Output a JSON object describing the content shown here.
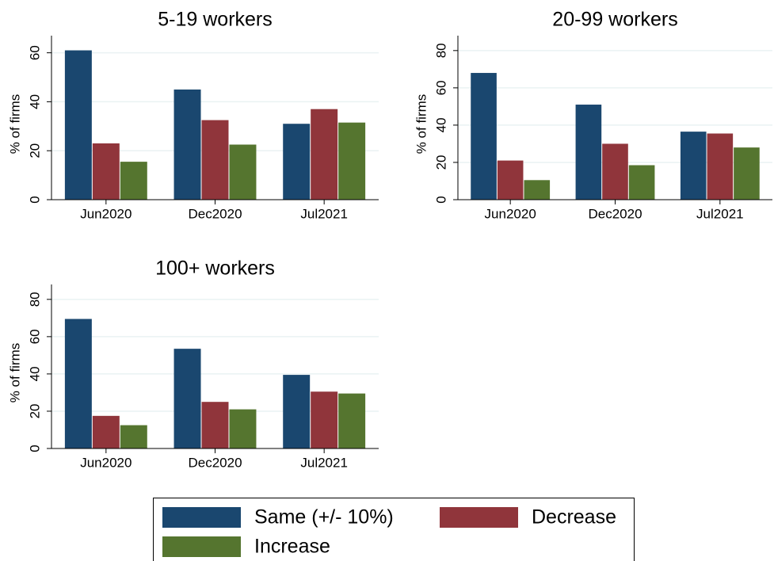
{
  "chart_data": [
    {
      "type": "bar",
      "title": "5-19 workers",
      "ylabel": "% of firms",
      "categories": [
        "Jun2020",
        "Dec2020",
        "Jul2021"
      ],
      "series": [
        {
          "name": "Same (+/- 10%)",
          "color": "#1a476f",
          "values": [
            61,
            45,
            31
          ]
        },
        {
          "name": "Decrease",
          "color": "#90353b",
          "values": [
            23,
            32.5,
            37
          ]
        },
        {
          "name": "Increase",
          "color": "#55752f",
          "values": [
            15.5,
            22.5,
            31.5
          ]
        }
      ],
      "ylim": [
        0,
        67
      ],
      "yticks": [
        0,
        20,
        40,
        60
      ],
      "grid": true,
      "legend": "bottom"
    },
    {
      "type": "bar",
      "title": "20-99 workers",
      "ylabel": "% of firms",
      "categories": [
        "Jun2020",
        "Dec2020",
        "Jul2021"
      ],
      "series": [
        {
          "color": "#1a476f",
          "values": [
            68,
            51,
            36.5
          ]
        },
        {
          "color": "#90353b",
          "values": [
            21,
            30,
            35.5
          ]
        },
        {
          "color": "#55752f",
          "values": [
            10.5,
            18.5,
            28
          ]
        }
      ],
      "ylim": [
        0,
        88
      ],
      "yticks": [
        0,
        20,
        40,
        60,
        80
      ],
      "grid": true
    },
    {
      "type": "bar",
      "title": "100+ workers",
      "ylabel": "% of firms",
      "categories": [
        "Jun2020",
        "Dec2020",
        "Jul2021"
      ],
      "series": [
        {
          "color": "#1a476f",
          "values": [
            69.5,
            53.5,
            39.5
          ]
        },
        {
          "color": "#90353b",
          "values": [
            17.5,
            25,
            30.5
          ]
        },
        {
          "color": "#55752f",
          "values": [
            12.5,
            21,
            29.5
          ]
        }
      ],
      "ylim": [
        0,
        88
      ],
      "yticks": [
        0,
        20,
        40,
        60,
        80
      ],
      "grid": true
    }
  ]
}
